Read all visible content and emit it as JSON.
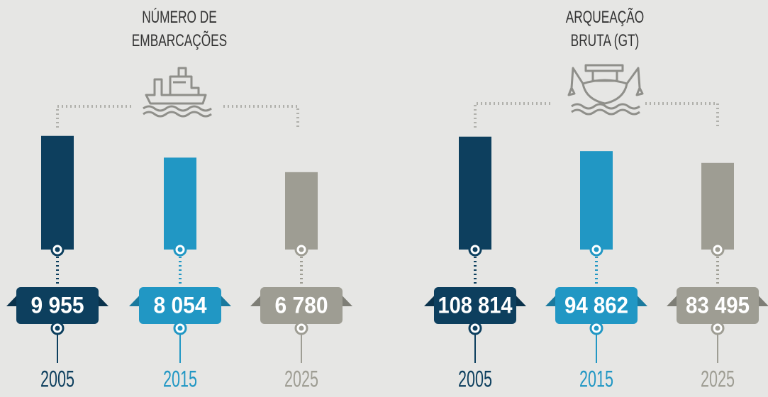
{
  "chart_data": [
    {
      "type": "bar",
      "title": "NÚMERO DE EMBARCAÇÕES",
      "categories": [
        "2005",
        "2015",
        "2025"
      ],
      "values": [
        9955,
        8054,
        6780
      ],
      "value_labels": [
        "9 955",
        "8 054",
        "6 780"
      ],
      "colors": [
        "#0d3f5e",
        "#2197c4",
        "#9e9d93"
      ],
      "ylim": [
        0,
        10000
      ]
    },
    {
      "type": "bar",
      "title": "ARQUEAÇÃO BRUTA (GT)",
      "categories": [
        "2005",
        "2015",
        "2025"
      ],
      "values": [
        108814,
        94862,
        83495
      ],
      "value_labels": [
        "108 814",
        "94 862",
        "83 495"
      ],
      "colors": [
        "#0d3f5e",
        "#2197c4",
        "#9e9d93"
      ],
      "ylim": [
        0,
        110000
      ]
    }
  ]
}
